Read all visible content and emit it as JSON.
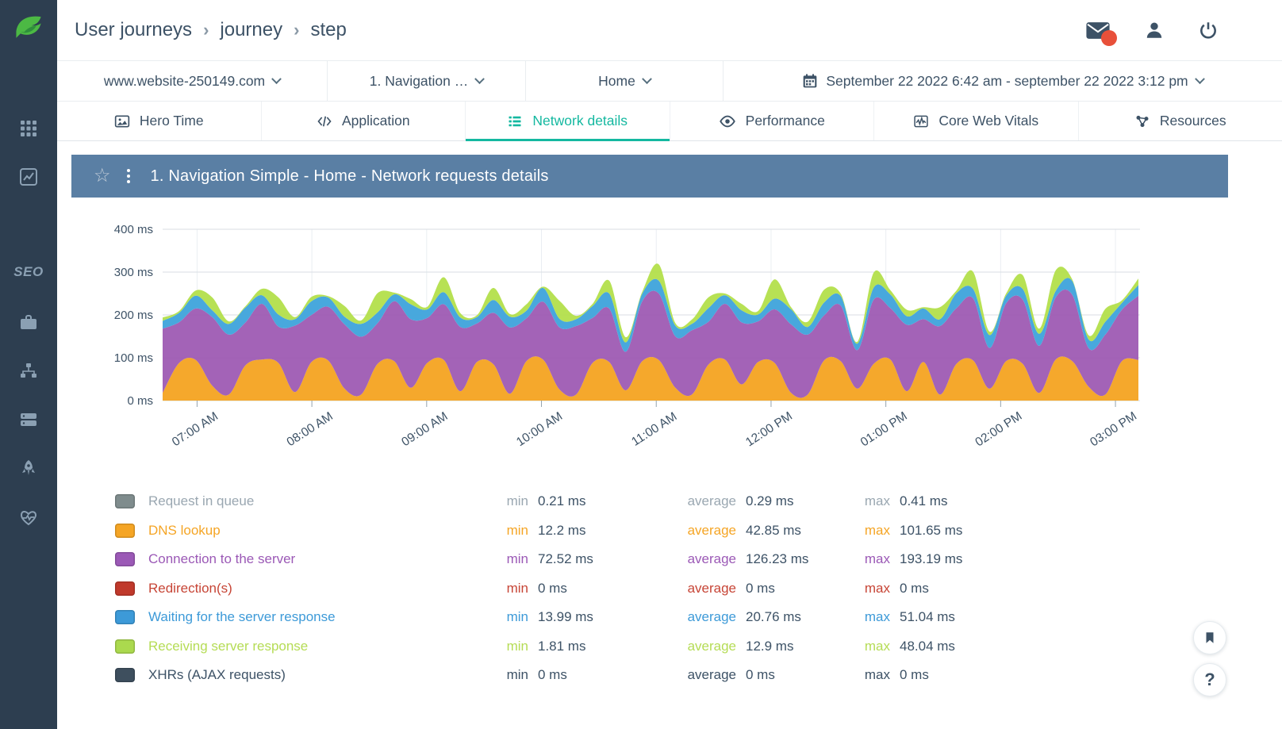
{
  "sidebar": {
    "seo_label": "SEO"
  },
  "header": {
    "breadcrumb": [
      "User journeys",
      "journey",
      "step"
    ],
    "separator": "›"
  },
  "filters": {
    "website": "www.website-250149.com",
    "step": "1. Navigation …",
    "page": "Home",
    "date_range": "September 22 2022 6:42 am - september 22 2022 3:12 pm"
  },
  "tabs": [
    {
      "label": "Hero Time",
      "icon": "hero-time",
      "active": false
    },
    {
      "label": "Application",
      "icon": "application",
      "active": false
    },
    {
      "label": "Network details",
      "icon": "network-details",
      "active": true
    },
    {
      "label": "Performance",
      "icon": "performance",
      "active": false
    },
    {
      "label": "Core Web Vitals",
      "icon": "core-web-vitals",
      "active": false
    },
    {
      "label": "Resources",
      "icon": "resources",
      "active": false
    }
  ],
  "panel": {
    "title": "1. Navigation Simple - Home - Network requests details"
  },
  "chart_data": {
    "type": "area",
    "stacked": true,
    "title": "1. Navigation Simple - Home - Network requests details",
    "x_start": "6:42 AM",
    "x_end": "3:12 PM",
    "x_tick_labels": [
      "07:00 AM",
      "08:00 AM",
      "09:00 AM",
      "10:00 AM",
      "11:00 AM",
      "12:00 PM",
      "01:00 PM",
      "02:00 PM",
      "03:00 PM"
    ],
    "y_ticks": [
      0,
      100,
      200,
      300,
      400
    ],
    "y_unit": "ms",
    "ylim": [
      0,
      400
    ],
    "grid": true,
    "legend_position": "bottom",
    "series": [
      {
        "name": "DNS lookup",
        "color": "#F5A525",
        "values": [
          18,
          88,
          95,
          35,
          14,
          82,
          96,
          88,
          20,
          90,
          94,
          28,
          14,
          86,
          92,
          30,
          88,
          95,
          22,
          90,
          85,
          16,
          92,
          96,
          26,
          14,
          88,
          90,
          24,
          92,
          95,
          30,
          14,
          84,
          96,
          38,
          90,
          88,
          18,
          14,
          94,
          92,
          28,
          86,
          96,
          22,
          90,
          14,
          86,
          94,
          28,
          92,
          86,
          18,
          96,
          92,
          32,
          14,
          92,
          95
        ]
      },
      {
        "name": "Connection to the server",
        "color": "#A05EB5",
        "values": [
          150,
          95,
          120,
          160,
          140,
          100,
          130,
          85,
          155,
          110,
          125,
          150,
          135,
          95,
          140,
          160,
          105,
          130,
          150,
          90,
          120,
          155,
          100,
          135,
          145,
          160,
          105,
          125,
          90,
          140,
          155,
          120,
          150,
          100,
          130,
          145,
          95,
          125,
          160,
          140,
          105,
          130,
          90,
          150,
          120,
          155,
          100,
          160,
          130,
          145,
          95,
          135,
          150,
          110,
          145,
          155,
          90,
          140,
          120,
          150
        ]
      },
      {
        "name": "Waiting for the server response",
        "color": "#42A5DC",
        "values": [
          18,
          22,
          30,
          16,
          25,
          35,
          20,
          28,
          15,
          32,
          22,
          18,
          30,
          25,
          16,
          35,
          20,
          28,
          22,
          15,
          30,
          25,
          18,
          32,
          20,
          16,
          28,
          35,
          22,
          18,
          30,
          25,
          15,
          32,
          20,
          28,
          16,
          25,
          35,
          18,
          30,
          22,
          15,
          28,
          32,
          20,
          25,
          16,
          35,
          22,
          30,
          18,
          25,
          28,
          15,
          32,
          20,
          30,
          16,
          25
        ]
      },
      {
        "name": "Receiving server response",
        "color": "#B5E04E",
        "values": [
          8,
          4,
          12,
          30,
          6,
          3,
          15,
          40,
          5,
          10,
          3,
          25,
          8,
          45,
          4,
          12,
          6,
          35,
          10,
          4,
          28,
          6,
          15,
          3,
          42,
          8,
          5,
          30,
          12,
          4,
          38,
          6,
          10,
          25,
          4,
          15,
          8,
          45,
          5,
          12,
          30,
          6,
          4,
          35,
          10,
          15,
          3,
          28,
          6,
          40,
          8,
          5,
          32,
          12,
          48,
          4,
          10,
          30,
          6,
          15
        ]
      }
    ],
    "zero_series": [
      "Request in queue",
      "Redirection(s)",
      "XHRs (AJAX requests)"
    ]
  },
  "legend": {
    "stat_labels": {
      "min": "min",
      "average": "average",
      "max": "max"
    },
    "rows": [
      {
        "name": "Request in queue",
        "color": "#7F8C8D",
        "text_color": "#9AA7B1",
        "min": "0.21 ms",
        "average": "0.29 ms",
        "max": "0.41 ms"
      },
      {
        "name": "DNS lookup",
        "color": "#F5A525",
        "text_color": "#F5A525",
        "min": "12.2 ms",
        "average": "42.85 ms",
        "max": "101.65 ms"
      },
      {
        "name": "Connection to the server",
        "color": "#9B59B6",
        "text_color": "#9B59B6",
        "min": "72.52 ms",
        "average": "126.23 ms",
        "max": "193.19 ms"
      },
      {
        "name": "Redirection(s)",
        "color": "#C0392B",
        "text_color": "#C74536",
        "min": "0 ms",
        "average": "0 ms",
        "max": "0 ms"
      },
      {
        "name": "Waiting for the server response",
        "color": "#3D9AD8",
        "text_color": "#3D9AD8",
        "min": "13.99 ms",
        "average": "20.76 ms",
        "max": "51.04 ms"
      },
      {
        "name": "Receiving server response",
        "color": "#ABD94E",
        "text_color": "#B5DC55",
        "min": "1.81 ms",
        "average": "12.9 ms",
        "max": "48.04 ms"
      },
      {
        "name": "XHRs (AJAX requests)",
        "color": "#3E4F5E",
        "text_color": "#3D5266",
        "min": "0 ms",
        "average": "0 ms",
        "max": "0 ms"
      }
    ]
  },
  "fab": {
    "help": "?"
  }
}
